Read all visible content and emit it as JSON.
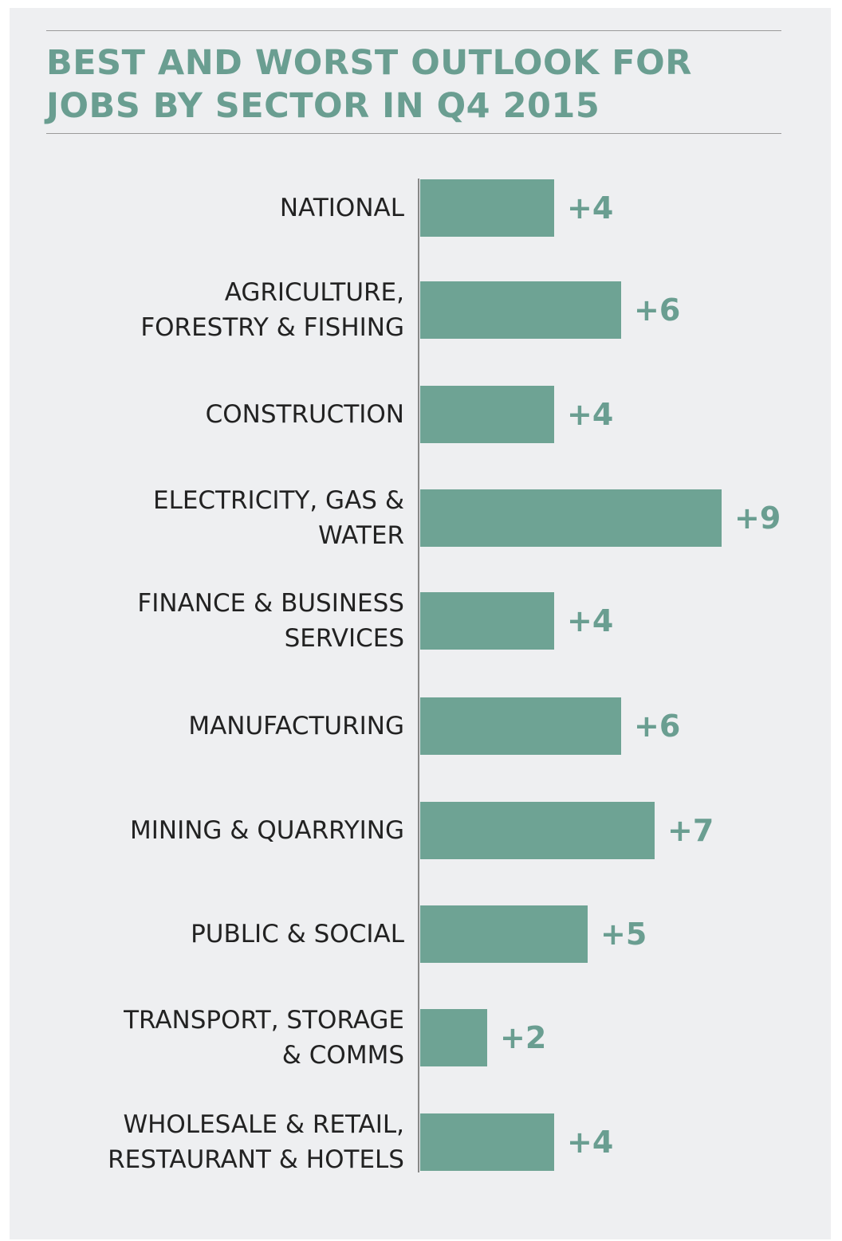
{
  "chart_data": {
    "type": "hbar",
    "title": "BEST AND WORST OUTLOOK FOR JOBS BY SECTOR IN Q4 2015",
    "categories": [
      "NATIONAL",
      "AGRICULTURE,\nFORESTRY & FISHING",
      "CONSTRUCTION",
      "ELECTRICITY, GAS &\nWATER",
      "FINANCE & BUSINESS\nSERVICES",
      "MANUFACTURING",
      "MINING & QUARRYING",
      "PUBLIC & SOCIAL",
      "TRANSPORT, STORAGE\n& COMMS",
      "WHOLESALE & RETAIL,\nRESTAURANT & HOTELS"
    ],
    "values": [
      4,
      6,
      4,
      9,
      4,
      6,
      7,
      5,
      2,
      4
    ],
    "value_labels": [
      "+4",
      "+6",
      "+4",
      "+9",
      "+4",
      "+6",
      "+7",
      "+5",
      "+2",
      "+4"
    ],
    "color": "#6ea394"
  }
}
